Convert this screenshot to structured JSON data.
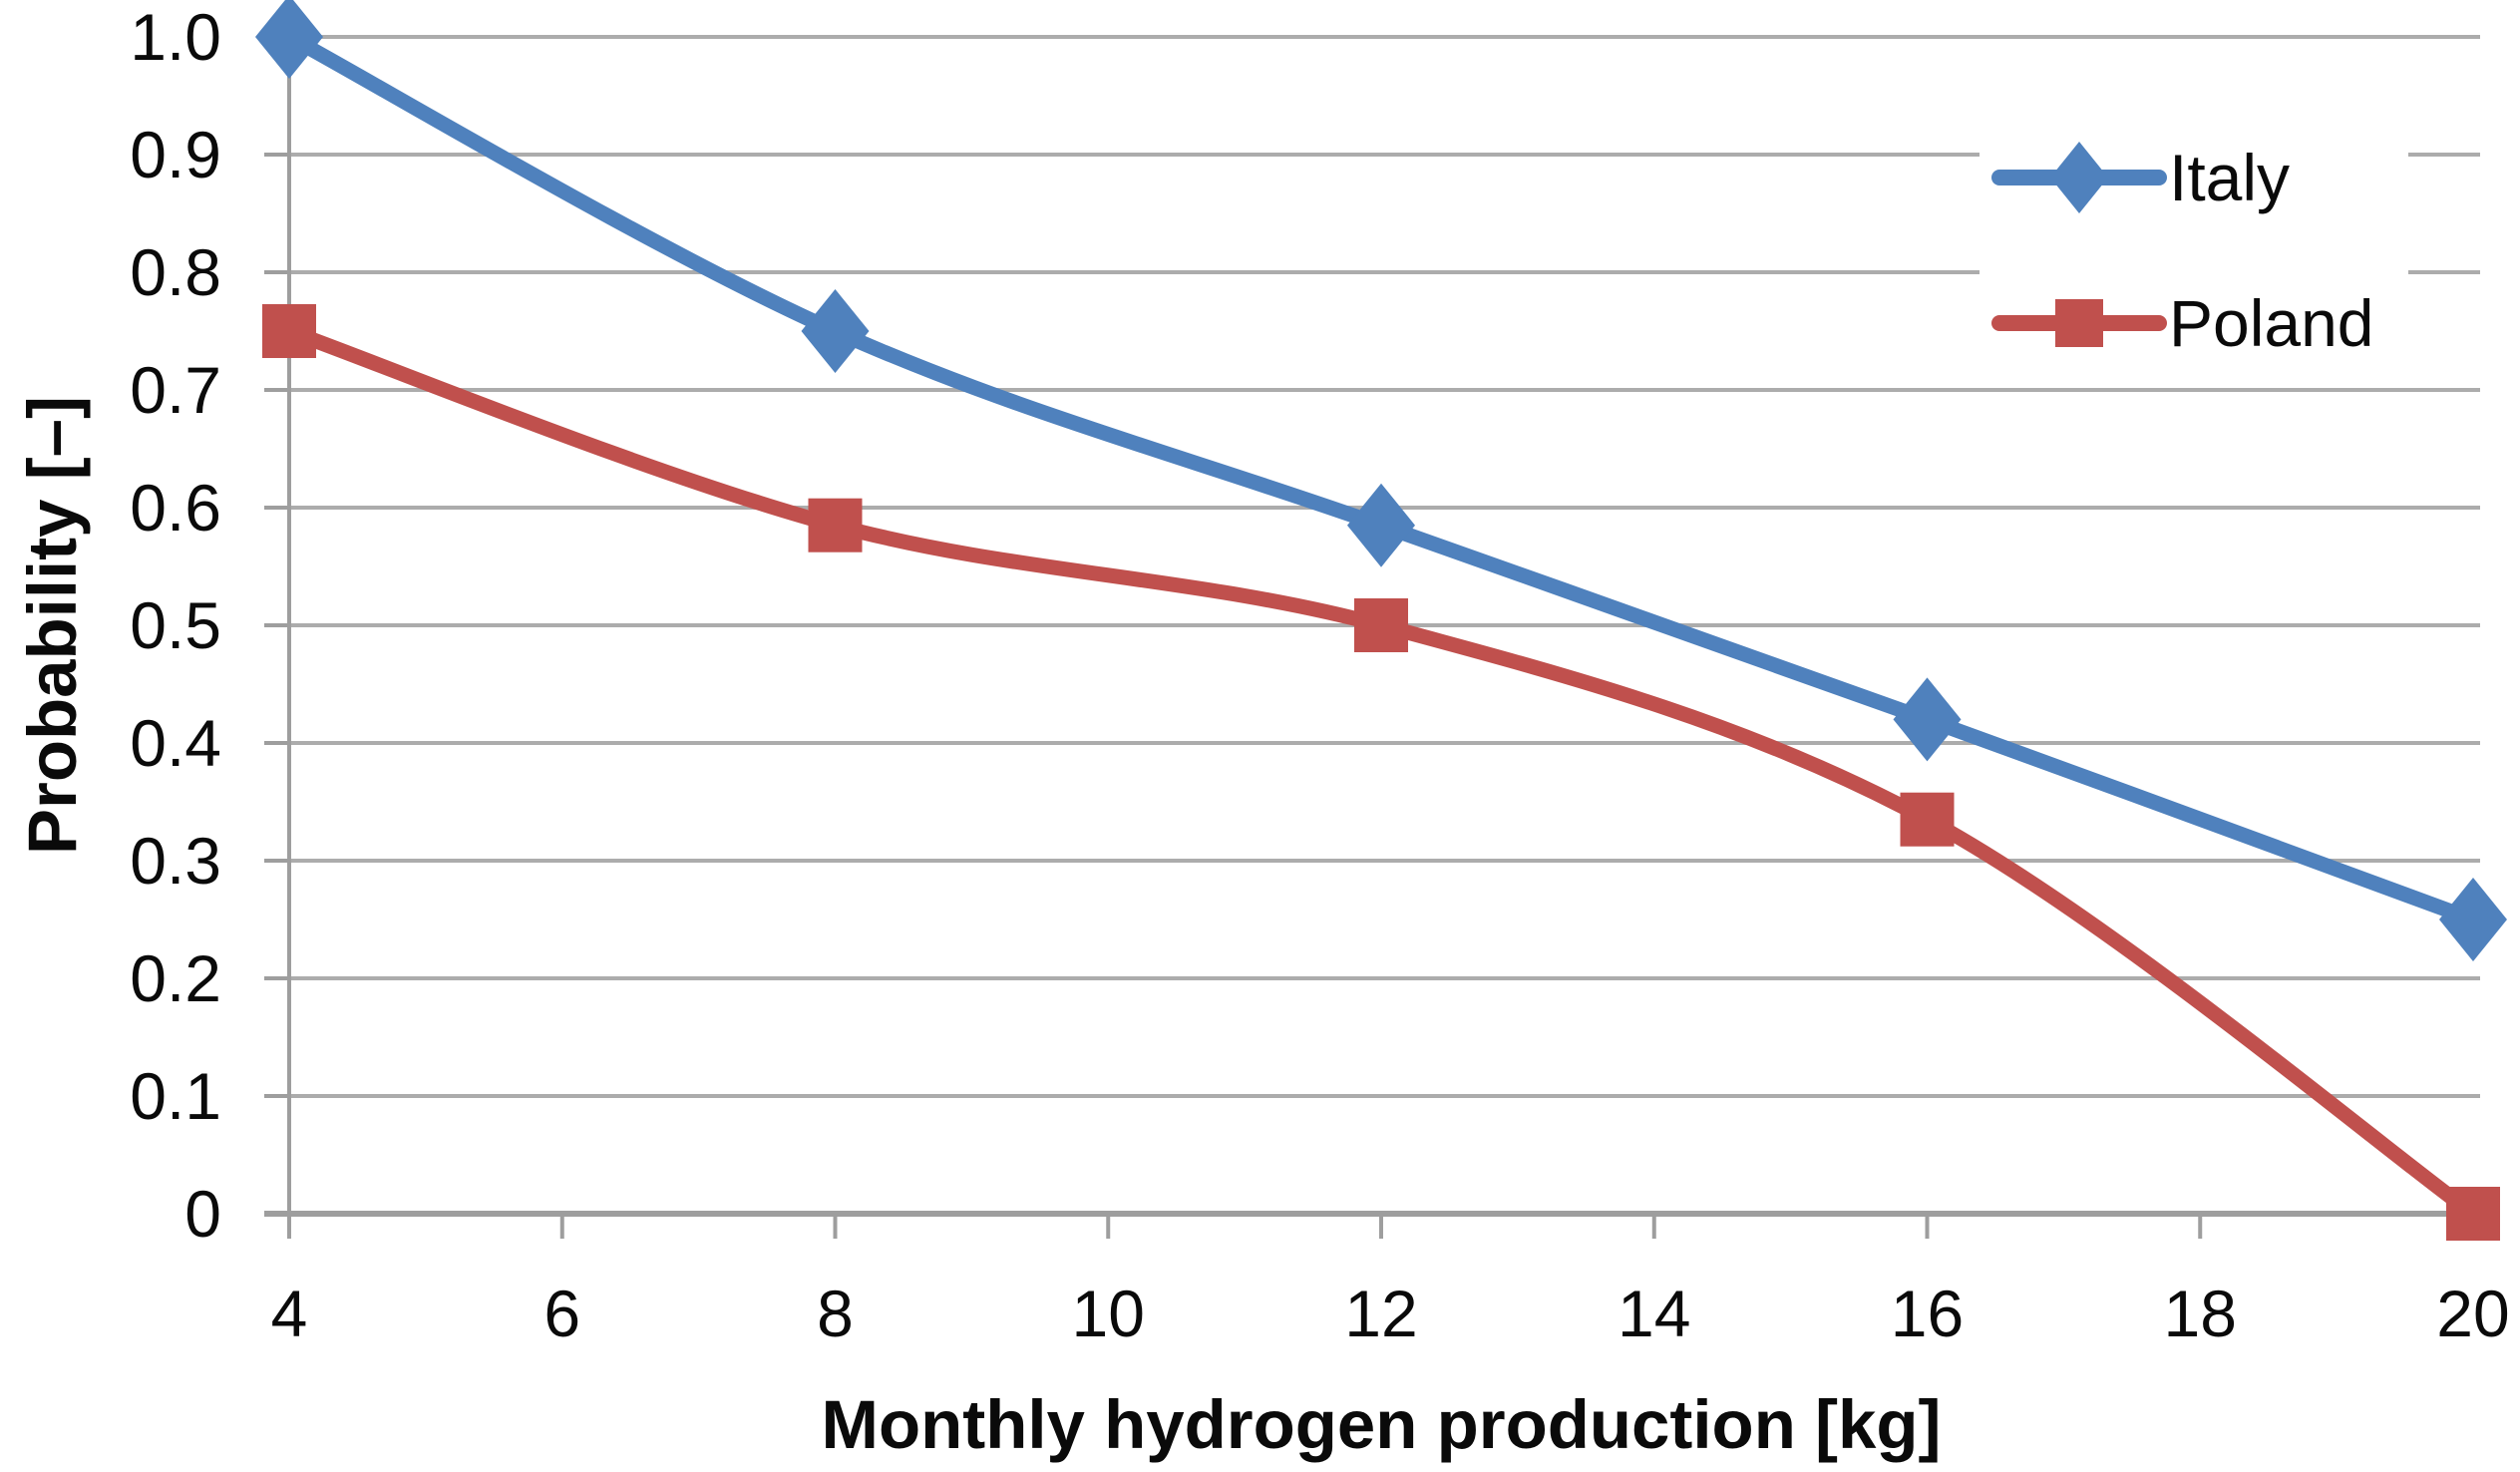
{
  "chart_data": {
    "type": "line",
    "title": "",
    "xlabel": "Monthly hydrogen production [kg]",
    "ylabel": "Probability [–]",
    "x": [
      4,
      8,
      12,
      16,
      20
    ],
    "series": [
      {
        "name": "Italy",
        "color": "#4F81BD",
        "marker": "diamond",
        "values": [
          1.0,
          0.75,
          0.585,
          0.42,
          0.25
        ]
      },
      {
        "name": "Poland",
        "color": "#C0504D",
        "marker": "square",
        "values": [
          0.75,
          0.585,
          0.5,
          0.335,
          0.0
        ]
      }
    ],
    "x_ticks": [
      "4",
      "6",
      "8",
      "10",
      "12",
      "14",
      "16",
      "18",
      "20"
    ],
    "x_tick_values": [
      4,
      6,
      8,
      10,
      12,
      14,
      16,
      18,
      20
    ],
    "y_ticks": [
      "1.0",
      "0.9",
      "0.8",
      "0.7",
      "0.6",
      "0.5",
      "0.4",
      "0.3",
      "0.2",
      "0.1",
      "0"
    ],
    "y_tick_values": [
      1.0,
      0.9,
      0.8,
      0.7,
      0.6,
      0.5,
      0.4,
      0.3,
      0.2,
      0.1,
      0
    ],
    "xlim": [
      4,
      20
    ],
    "ylim": [
      0,
      1.0
    ],
    "grid": "horizontal",
    "line_style": "smooth",
    "legend_position": "top-right-inside",
    "colors": {
      "gridline": "#ACACAC",
      "axis": "#9E9E9E",
      "text": "#0a0a0a",
      "background": "#FFFFFF"
    }
  }
}
